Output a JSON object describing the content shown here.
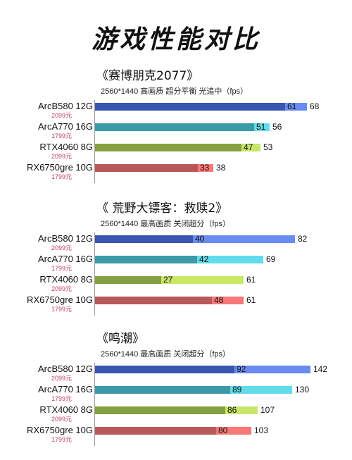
{
  "title": "游戏性能对比",
  "chart_data": [
    {
      "type": "bar",
      "title": "《赛博朋克2077》",
      "subtitle": "2560*1440 高画质 超分平衡 光追中（fps）",
      "categories": [
        "ArcB580 12G",
        "ArcA770 16G",
        "RTX4060 8G",
        "RX6750gre 10G"
      ],
      "prices": [
        "2099元",
        "1799元",
        "2099元",
        "1799元"
      ],
      "series": [
        {
          "values": [
            61,
            51,
            47,
            33
          ]
        },
        {
          "values": [
            68,
            56,
            53,
            38
          ]
        }
      ]
    },
    {
      "type": "bar",
      "title": "《 荒野大镖客：救赎2》",
      "subtitle": "2560*1440 最高画质 关闭超分（fps）",
      "categories": [
        "ArcB580 12G",
        "ArcA770 16G",
        "RTX4060 8G",
        "RX6750gre 10G"
      ],
      "prices": [
        "2099元",
        "1799元",
        "2099元",
        "1799元"
      ],
      "series": [
        {
          "values": [
            40,
            42,
            27,
            48
          ]
        },
        {
          "values": [
            82,
            69,
            61,
            61
          ]
        }
      ]
    },
    {
      "type": "bar",
      "title": "《鸣潮》",
      "subtitle": "2560*1440 最高画质 关闭超分（fps）",
      "categories": [
        "ArcB580 12G",
        "ArcA770 16G",
        "RTX4060 8G",
        "RX6750gre 10G"
      ],
      "prices": [
        "2099元",
        "1799元",
        "2099元",
        "1799元"
      ],
      "series": [
        {
          "values": [
            92,
            89,
            86,
            80
          ]
        },
        {
          "values": [
            142,
            130,
            107,
            103
          ]
        }
      ]
    }
  ],
  "colors": {
    "dark": [
      "#3a55b0",
      "#3a9aa8",
      "#84a040",
      "#b85858"
    ],
    "light": [
      "#6a8cf0",
      "#62dcea",
      "#c8e66a",
      "#f87878"
    ],
    "price": "#c0406a"
  }
}
